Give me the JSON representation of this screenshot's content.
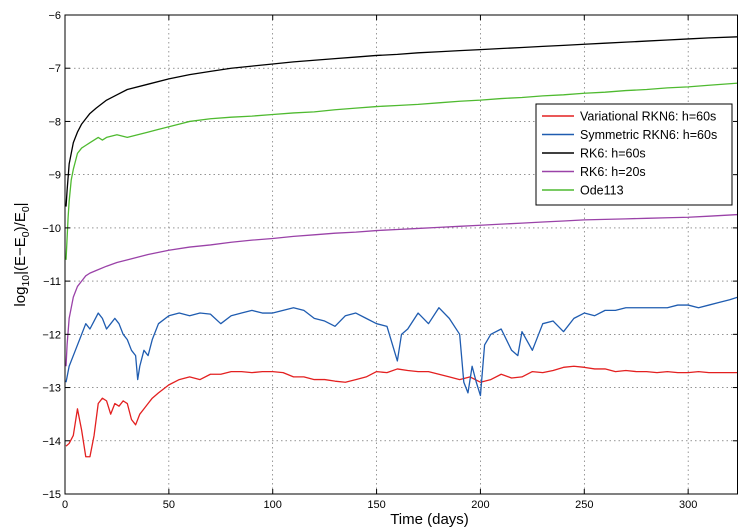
{
  "chart_data": {
    "type": "line",
    "title": "",
    "xlabel": "Time (days)",
    "ylabel_parts": [
      "log",
      "10",
      "|(E−E",
      "0",
      ")/E",
      "0",
      "|"
    ],
    "xlim": [
      0,
      324
    ],
    "ylim": [
      -15,
      -6
    ],
    "xticks": [
      0,
      50,
      100,
      150,
      200,
      250,
      300
    ],
    "yticks": [
      -15,
      -14,
      -13,
      -12,
      -11,
      -10,
      -9,
      -8,
      -7,
      -6
    ],
    "xtick_labels": [
      "0",
      "50",
      "100",
      "150",
      "200",
      "250",
      "300"
    ],
    "ytick_labels": [
      "−15",
      "−14",
      "−13",
      "−12",
      "−11",
      "−10",
      "−9",
      "−8",
      "−7",
      "−6"
    ],
    "grid": true,
    "legend_position": "top-right",
    "series": [
      {
        "name": "Variational RKN6: h=60s",
        "color": "#e32020",
        "x": [
          0.5,
          2,
          4,
          6,
          8,
          10,
          12,
          14,
          16,
          18,
          20,
          22,
          24,
          26,
          28,
          30,
          32,
          34,
          35,
          36,
          38,
          40,
          42,
          45,
          50,
          55,
          60,
          65,
          70,
          75,
          80,
          85,
          90,
          95,
          100,
          105,
          110,
          115,
          120,
          125,
          130,
          135,
          140,
          145,
          150,
          155,
          160,
          165,
          170,
          175,
          180,
          185,
          190,
          195,
          200,
          205,
          210,
          215,
          220,
          225,
          230,
          235,
          240,
          245,
          250,
          255,
          260,
          265,
          270,
          275,
          280,
          285,
          290,
          295,
          300,
          305,
          310,
          315,
          320,
          324
        ],
        "y": [
          -14.1,
          -14.05,
          -13.9,
          -13.4,
          -13.8,
          -14.3,
          -14.3,
          -13.9,
          -13.3,
          -13.2,
          -13.25,
          -13.5,
          -13.3,
          -13.35,
          -13.25,
          -13.3,
          -13.6,
          -13.7,
          -13.6,
          -13.5,
          -13.4,
          -13.3,
          -13.2,
          -13.1,
          -12.95,
          -12.85,
          -12.8,
          -12.85,
          -12.75,
          -12.75,
          -12.7,
          -12.7,
          -12.72,
          -12.7,
          -12.7,
          -12.72,
          -12.8,
          -12.8,
          -12.85,
          -12.85,
          -12.88,
          -12.9,
          -12.85,
          -12.8,
          -12.7,
          -12.72,
          -12.65,
          -12.68,
          -12.7,
          -12.7,
          -12.75,
          -12.8,
          -12.85,
          -12.8,
          -12.9,
          -12.85,
          -12.75,
          -12.82,
          -12.8,
          -12.7,
          -12.72,
          -12.68,
          -12.62,
          -12.6,
          -12.62,
          -12.65,
          -12.65,
          -12.7,
          -12.68,
          -12.7,
          -12.7,
          -12.72,
          -12.7,
          -12.72,
          -12.72,
          -12.7,
          -12.72,
          -12.72,
          -12.72,
          -12.72
        ]
      },
      {
        "name": "Symmetric RKN6: h=60s",
        "color": "#1f5cb0",
        "x": [
          0.5,
          2,
          5,
          8,
          10,
          12,
          14,
          16,
          18,
          20,
          22,
          24,
          26,
          28,
          30,
          32,
          34,
          35,
          36,
          38,
          40,
          42,
          45,
          50,
          55,
          60,
          65,
          70,
          75,
          80,
          85,
          90,
          95,
          100,
          105,
          110,
          115,
          120,
          125,
          130,
          135,
          140,
          145,
          150,
          155,
          160,
          162,
          165,
          170,
          175,
          180,
          185,
          190,
          192,
          194,
          196,
          198,
          200,
          202,
          205,
          210,
          215,
          218,
          220,
          225,
          230,
          235,
          240,
          245,
          250,
          255,
          260,
          265,
          270,
          275,
          280,
          285,
          290,
          295,
          300,
          305,
          310,
          315,
          320,
          324
        ],
        "y": [
          -12.9,
          -12.6,
          -12.3,
          -12.0,
          -11.8,
          -11.9,
          -11.75,
          -11.6,
          -11.7,
          -11.9,
          -11.8,
          -11.7,
          -11.8,
          -12.0,
          -12.1,
          -12.3,
          -12.4,
          -12.85,
          -12.6,
          -12.3,
          -12.4,
          -12.1,
          -11.8,
          -11.65,
          -11.6,
          -11.65,
          -11.6,
          -11.62,
          -11.8,
          -11.65,
          -11.6,
          -11.55,
          -11.6,
          -11.6,
          -11.55,
          -11.5,
          -11.55,
          -11.7,
          -11.75,
          -11.85,
          -11.65,
          -11.6,
          -11.7,
          -11.8,
          -11.85,
          -12.5,
          -12.0,
          -11.9,
          -11.6,
          -11.8,
          -11.5,
          -11.7,
          -12.0,
          -12.9,
          -13.1,
          -12.6,
          -12.9,
          -13.15,
          -12.2,
          -12.0,
          -11.9,
          -12.3,
          -12.4,
          -11.95,
          -12.3,
          -11.8,
          -11.75,
          -11.95,
          -11.7,
          -11.6,
          -11.65,
          -11.55,
          -11.55,
          -11.5,
          -11.5,
          -11.5,
          -11.5,
          -11.5,
          -11.45,
          -11.45,
          -11.5,
          -11.45,
          -11.4,
          -11.35,
          -11.3
        ]
      },
      {
        "name": "RK6: h=60s",
        "color": "#000000",
        "x": [
          0.5,
          1,
          2,
          3,
          4,
          5,
          6,
          8,
          10,
          12,
          15,
          20,
          25,
          30,
          40,
          50,
          60,
          70,
          80,
          90,
          100,
          110,
          120,
          130,
          140,
          150,
          160,
          170,
          180,
          190,
          200,
          210,
          220,
          230,
          240,
          250,
          260,
          270,
          280,
          290,
          300,
          310,
          324
        ],
        "y": [
          -9.6,
          -9.3,
          -8.8,
          -8.6,
          -8.4,
          -8.3,
          -8.2,
          -8.05,
          -7.95,
          -7.85,
          -7.75,
          -7.6,
          -7.5,
          -7.4,
          -7.3,
          -7.2,
          -7.12,
          -7.06,
          -7.0,
          -6.96,
          -6.92,
          -6.88,
          -6.85,
          -6.82,
          -6.79,
          -6.76,
          -6.74,
          -6.71,
          -6.69,
          -6.67,
          -6.65,
          -6.63,
          -6.61,
          -6.59,
          -6.57,
          -6.55,
          -6.53,
          -6.51,
          -6.49,
          -6.47,
          -6.45,
          -6.43,
          -6.41
        ]
      },
      {
        "name": "RK6: h=20s",
        "color": "#9a42a8",
        "x": [
          0.5,
          1,
          2,
          3,
          4,
          5,
          6,
          8,
          10,
          12,
          15,
          20,
          25,
          30,
          40,
          50,
          60,
          70,
          80,
          90,
          100,
          110,
          120,
          130,
          140,
          150,
          160,
          170,
          180,
          190,
          200,
          210,
          220,
          230,
          240,
          250,
          260,
          270,
          280,
          290,
          300,
          310,
          324
        ],
        "y": [
          -12.6,
          -12.2,
          -11.7,
          -11.5,
          -11.3,
          -11.2,
          -11.1,
          -11.0,
          -10.9,
          -10.85,
          -10.8,
          -10.72,
          -10.65,
          -10.6,
          -10.5,
          -10.42,
          -10.36,
          -10.32,
          -10.27,
          -10.23,
          -10.2,
          -10.16,
          -10.13,
          -10.1,
          -10.08,
          -10.05,
          -10.03,
          -10.01,
          -9.99,
          -9.97,
          -9.95,
          -9.93,
          -9.91,
          -9.89,
          -9.87,
          -9.85,
          -9.84,
          -9.83,
          -9.82,
          -9.81,
          -9.8,
          -9.78,
          -9.75
        ]
      },
      {
        "name": "Ode113",
        "color": "#4fba30",
        "x": [
          0.5,
          1,
          1.5,
          2,
          3,
          4,
          5,
          6,
          8,
          10,
          12,
          14,
          16,
          18,
          20,
          25,
          30,
          35,
          40,
          45,
          50,
          55,
          60,
          70,
          80,
          90,
          100,
          110,
          120,
          130,
          140,
          150,
          160,
          170,
          180,
          190,
          200,
          210,
          220,
          230,
          240,
          250,
          260,
          270,
          280,
          290,
          300,
          310,
          324
        ],
        "y": [
          -10.6,
          -10.2,
          -9.8,
          -9.5,
          -9.1,
          -8.9,
          -8.75,
          -8.6,
          -8.5,
          -8.45,
          -8.4,
          -8.35,
          -8.3,
          -8.35,
          -8.3,
          -8.25,
          -8.3,
          -8.25,
          -8.2,
          -8.15,
          -8.1,
          -8.05,
          -8.0,
          -7.95,
          -7.92,
          -7.9,
          -7.87,
          -7.84,
          -7.82,
          -7.78,
          -7.75,
          -7.72,
          -7.7,
          -7.68,
          -7.65,
          -7.62,
          -7.6,
          -7.57,
          -7.55,
          -7.52,
          -7.5,
          -7.47,
          -7.45,
          -7.42,
          -7.4,
          -7.37,
          -7.35,
          -7.32,
          -7.28
        ]
      }
    ]
  }
}
